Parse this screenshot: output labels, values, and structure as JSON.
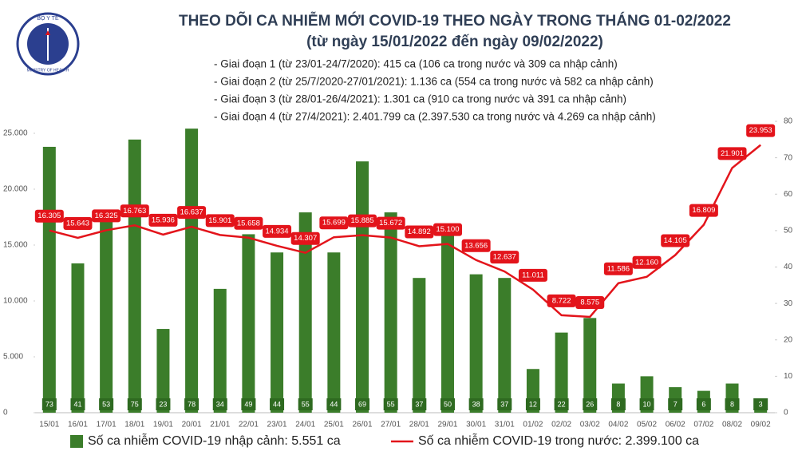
{
  "logo": {
    "top": "BỘ Y TẾ",
    "bottom": "MINISTRY OF HEALTH"
  },
  "chart_data": {
    "type": "bar-line",
    "title": "THEO DÕI CA NHIỄM MỚI COVID-19 THEO NGÀY TRONG THÁNG 01-02/2022",
    "subtitle": "(từ ngày 15/01/2022 đến ngày 09/02/2022)",
    "annotations": [
      "- Giai đoạn 1 (từ 23/01-24/7/2020): 415 ca (106 ca trong nước và 309 ca nhập cảnh)",
      "- Giai đoạn 2 (từ 25/7/2020-27/01/2021): 1.136 ca (554 ca trong nước và 582 ca nhập cảnh)",
      "- Giai đoạn 3 (từ 28/01-26/4/2021): 1.301 ca (910 ca trong nước và 391 ca nhập cảnh)",
      "- Giai đoạn 4 (từ 27/4/2021): 2.401.799 ca (2.397.530 ca trong nước và 4.269 ca nhập cảnh)"
    ],
    "categories": [
      "15/01",
      "16/01",
      "17/01",
      "18/01",
      "19/01",
      "20/01",
      "21/01",
      "22/01",
      "23/01",
      "24/01",
      "25/01",
      "26/01",
      "27/01",
      "28/01",
      "29/01",
      "30/01",
      "31/01",
      "01/02",
      "02/02",
      "03/02",
      "04/02",
      "05/02",
      "06/02",
      "07/02",
      "08/02",
      "09/02"
    ],
    "series": [
      {
        "name": "Số ca nhiễm COVID-19 nhập cảnh: 5.551 ca",
        "type": "bar",
        "axis": "y2",
        "color": "#3b7d2a",
        "values": [
          73,
          41,
          53,
          75,
          23,
          78,
          34,
          49,
          44,
          55,
          44,
          69,
          55,
          37,
          50,
          38,
          37,
          12,
          22,
          26,
          8,
          10,
          7,
          6,
          8,
          3
        ]
      },
      {
        "name": "Số ca nhiễm COVID-19 trong nước: 2.399.100 ca",
        "type": "line",
        "axis": "y",
        "color": "#e3141b",
        "values": [
          16305,
          15643,
          16325,
          16763,
          15936,
          16637,
          15901,
          15658,
          14934,
          14307,
          15699,
          15885,
          15672,
          14892,
          15100,
          13656,
          12637,
          11011,
          8722,
          8575,
          11586,
          12160,
          14105,
          16809,
          21901,
          23953
        ],
        "value_labels": [
          "16.305",
          "15.643",
          "16.325",
          "16.763",
          "15.936",
          "16.637",
          "15.901",
          "15.658",
          "14.934",
          "14.307",
          "15.699",
          "15.885",
          "15.672",
          "14.892",
          "15.100",
          "13.656",
          "12.637",
          "11.011",
          "8.722",
          "8.575",
          "11.586",
          "12.160",
          "14.105",
          "16.809",
          "21.901",
          "23.953"
        ]
      }
    ],
    "ylim": [
      0,
      26070
    ],
    "yticks": [
      0,
      {
        "value": 5000,
        "label": "5.000"
      },
      {
        "value": 10000,
        "label": "10.000"
      },
      {
        "value": 15000,
        "label": "15.000"
      },
      {
        "value": 20000,
        "label": "20.000"
      },
      {
        "value": 25000,
        "label": "25.000"
      }
    ],
    "y2lim": [
      0,
      80
    ],
    "y2ticks": [
      0,
      10,
      20,
      30,
      40,
      50,
      60,
      70,
      80
    ]
  }
}
